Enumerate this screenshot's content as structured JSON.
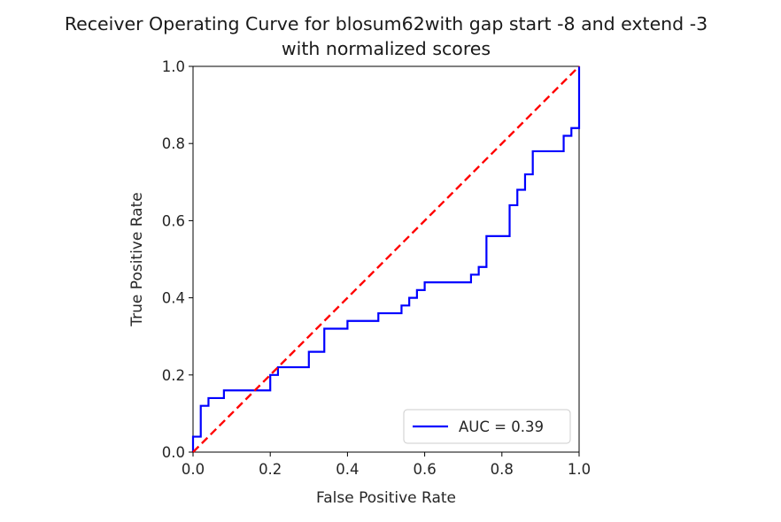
{
  "chart_data": {
    "type": "line",
    "title_lines": [
      "Receiver Operating Curve for blosum62with gap start -8 and extend -3",
      "with normalized scores"
    ],
    "xlabel": "False Positive Rate",
    "ylabel": "True Positive Rate",
    "xlim": [
      0.0,
      1.0
    ],
    "ylim": [
      0.0,
      1.0
    ],
    "x_ticks": [
      "0.0",
      "0.2",
      "0.4",
      "0.6",
      "0.8",
      "1.0"
    ],
    "y_ticks": [
      "0.0",
      "0.2",
      "0.4",
      "0.6",
      "0.8",
      "1.0"
    ],
    "grid": false,
    "legend_position": "lower-right",
    "series": [
      {
        "name": "AUC = 0.39",
        "color": "#0000ff",
        "style": "solid",
        "x": [
          0.0,
          0.0,
          0.02,
          0.02,
          0.04,
          0.04,
          0.08,
          0.08,
          0.2,
          0.2,
          0.22,
          0.22,
          0.3,
          0.3,
          0.34,
          0.34,
          0.4,
          0.4,
          0.48,
          0.48,
          0.54,
          0.54,
          0.56,
          0.56,
          0.58,
          0.58,
          0.6,
          0.6,
          0.72,
          0.72,
          0.74,
          0.74,
          0.76,
          0.76,
          0.82,
          0.82,
          0.84,
          0.84,
          0.86,
          0.86,
          0.88,
          0.88,
          0.96,
          0.96,
          0.98,
          0.98,
          1.0,
          1.0
        ],
        "y": [
          0.0,
          0.04,
          0.04,
          0.12,
          0.12,
          0.14,
          0.14,
          0.16,
          0.16,
          0.2,
          0.2,
          0.22,
          0.22,
          0.26,
          0.26,
          0.32,
          0.32,
          0.34,
          0.34,
          0.36,
          0.36,
          0.38,
          0.38,
          0.4,
          0.4,
          0.42,
          0.42,
          0.44,
          0.44,
          0.46,
          0.46,
          0.48,
          0.48,
          0.56,
          0.56,
          0.64,
          0.64,
          0.68,
          0.68,
          0.72,
          0.72,
          0.78,
          0.78,
          0.82,
          0.82,
          0.84,
          0.84,
          1.0
        ]
      },
      {
        "name": "",
        "color": "#ff0000",
        "style": "dashed",
        "x": [
          0.0,
          1.0
        ],
        "y": [
          0.0,
          1.0
        ]
      }
    ]
  }
}
